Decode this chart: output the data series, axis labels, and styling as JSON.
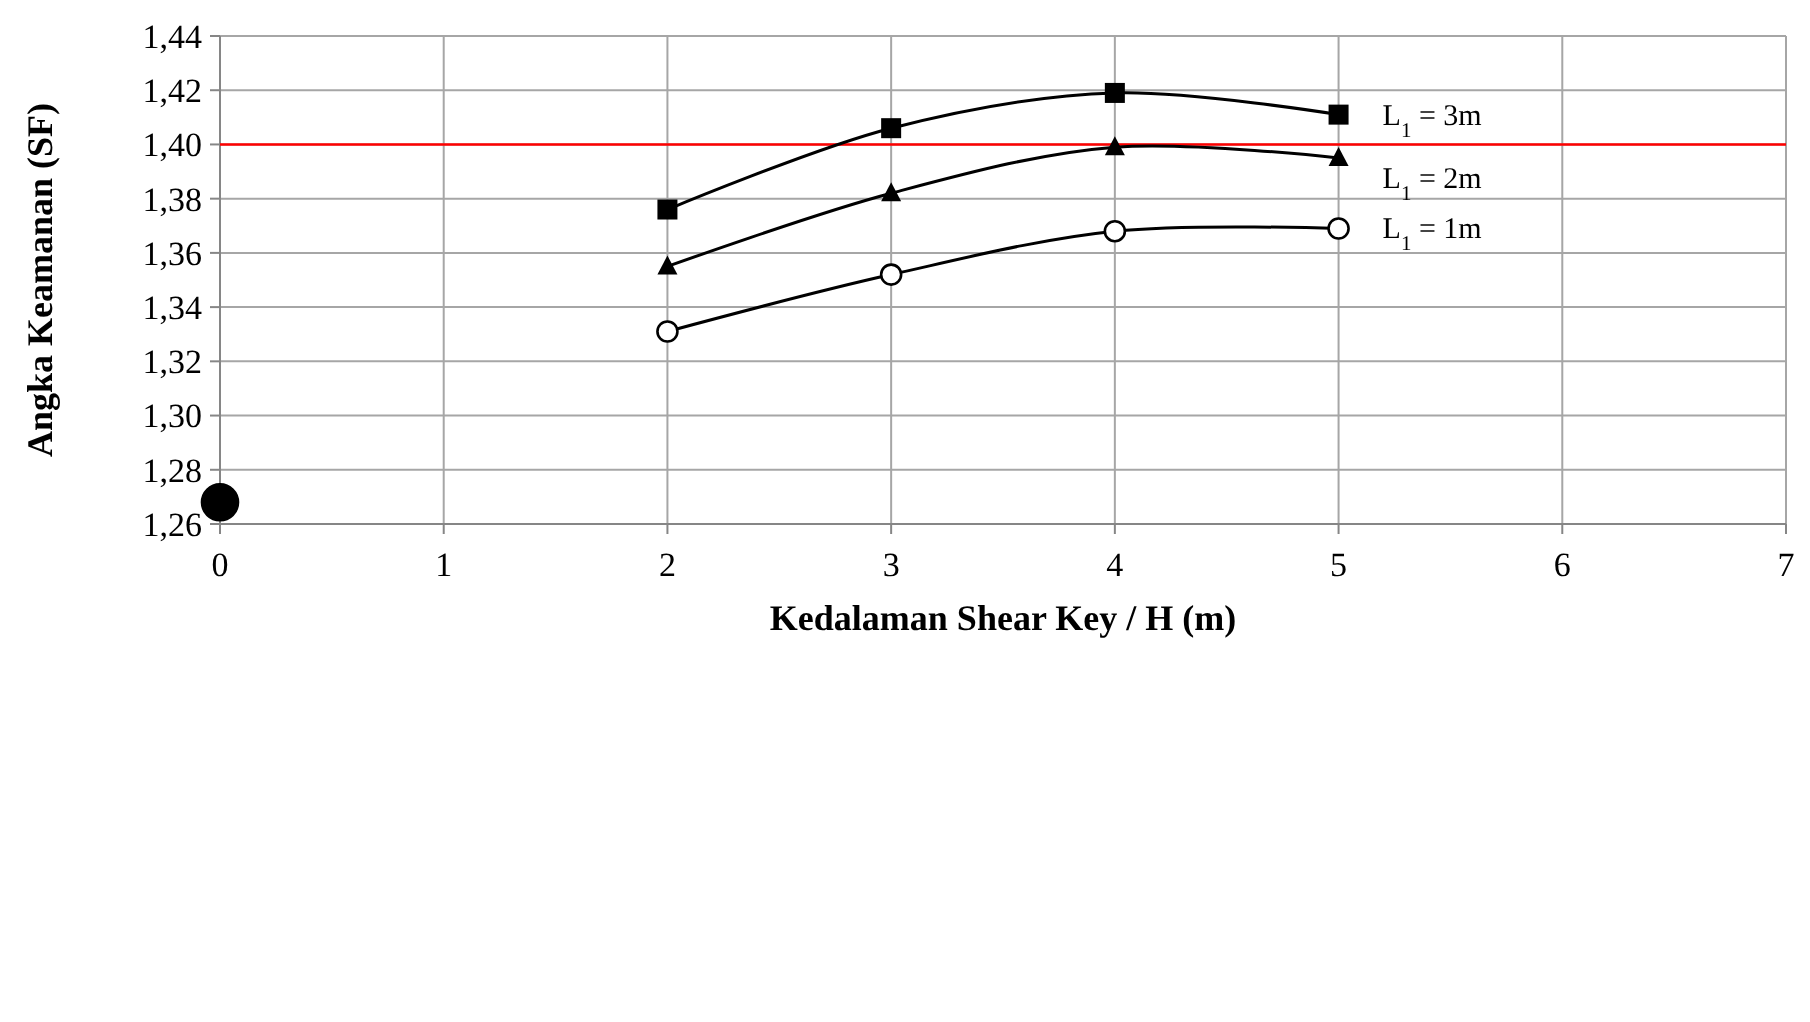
{
  "chart_data": {
    "type": "line",
    "xlabel": "Kedalaman Shear Key / H  (m)",
    "ylabel": "Angka Keamanan (SF)",
    "xlim": [
      0,
      7
    ],
    "xticks": [
      0,
      1,
      2,
      3,
      4,
      5,
      6,
      7
    ],
    "ylim": [
      1.26,
      1.44
    ],
    "yticks": [
      {
        "value": 1.26,
        "label": "1,26"
      },
      {
        "value": 1.28,
        "label": "1,28"
      },
      {
        "value": 1.3,
        "label": "1,30"
      },
      {
        "value": 1.32,
        "label": "1,32"
      },
      {
        "value": 1.34,
        "label": "1,34"
      },
      {
        "value": 1.36,
        "label": "1,36"
      },
      {
        "value": 1.38,
        "label": "1,38"
      },
      {
        "value": 1.4,
        "label": "1,40"
      },
      {
        "value": 1.42,
        "label": "1,42"
      },
      {
        "value": 1.44,
        "label": "1,44"
      }
    ],
    "grid": true,
    "series": [
      {
        "name": "L$_{1}$ = 3m",
        "color": "#000000",
        "marker": "square",
        "x": [
          2,
          3,
          4,
          5
        ],
        "values": [
          1.376,
          1.406,
          1.419,
          1.411
        ]
      },
      {
        "name": "L$_{1}$ = 2m",
        "color": "#000000",
        "marker": "triangle",
        "x": [
          2,
          3,
          4,
          5
        ],
        "values": [
          1.355,
          1.382,
          1.399,
          1.395
        ]
      },
      {
        "name": "L$_{1}$ = 1m",
        "color": "#000000",
        "marker": "circle",
        "x": [
          2,
          3,
          4,
          5
        ],
        "values": [
          1.331,
          1.352,
          1.368,
          1.369
        ]
      },
      {
        "type": "scatter",
        "color": "#000000",
        "marker": "circle",
        "x": [
          0
        ],
        "values": [
          1.268
        ]
      }
    ],
    "ref_lines": [
      {
        "axis": "y",
        "value": 1.4,
        "color": "#ff0000"
      }
    ]
  }
}
